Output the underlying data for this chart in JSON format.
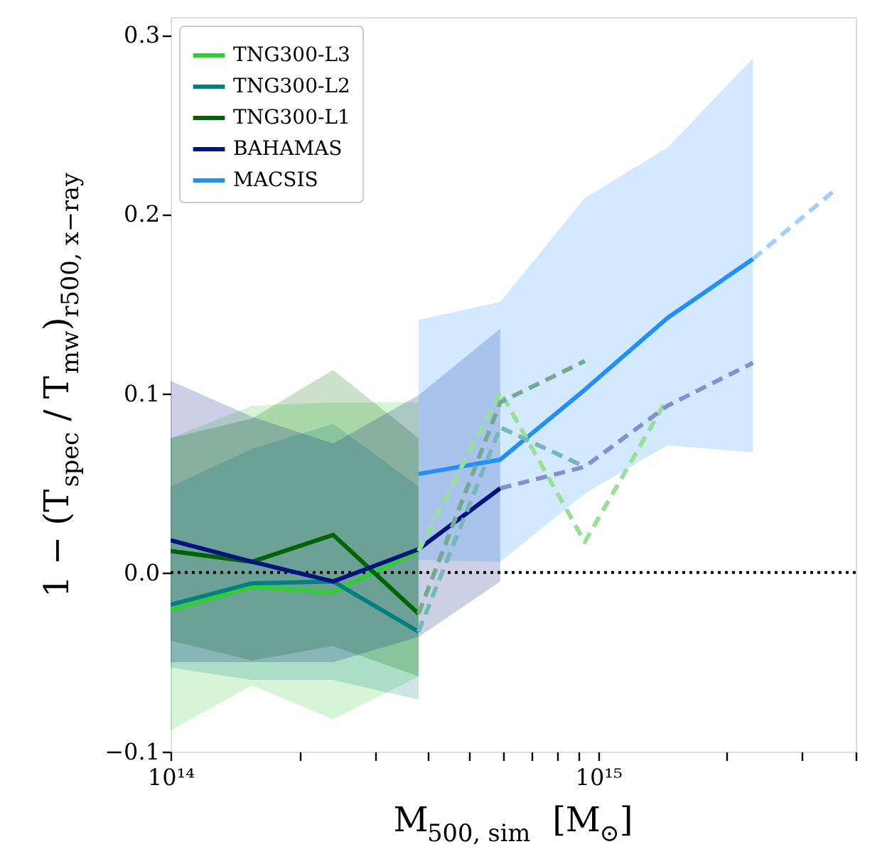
{
  "chart_data": {
    "type": "line",
    "xlabel": "M$_{500, sim}$  [M$_{⊙}$]",
    "ylabel": "1 − (T$_{spec}$ / T$_{mw}$)$_{r500, x−ray}$",
    "log": "x",
    "grid": false,
    "legend": "top left",
    "marker": "none",
    "xlim": [
      100000000000000.0,
      4000000000000000.0
    ],
    "ylim": [
      -0.1,
      0.31
    ],
    "xticks": [
      {
        "value": 100000000000000.0,
        "label": "10¹⁴"
      },
      {
        "value": 200000000000000.0,
        "label": null
      },
      {
        "value": 300000000000000.0,
        "label": null
      },
      {
        "value": 400000000000000.0,
        "label": null
      },
      {
        "value": 500000000000000.0,
        "label": null
      },
      {
        "value": 600000000000000.0,
        "label": null
      },
      {
        "value": 700000000000000.0,
        "label": null
      },
      {
        "value": 800000000000000.0,
        "label": null
      },
      {
        "value": 900000000000000.0,
        "label": null
      },
      {
        "value": 1000000000000000.0,
        "label": "10¹⁵"
      },
      {
        "value": 2000000000000000.0,
        "label": null
      },
      {
        "value": 3000000000000000.0,
        "label": null
      },
      {
        "value": 4000000000000000.0,
        "label": null
      }
    ],
    "yticks": [
      {
        "value": -0.1,
        "label": "−0.1"
      },
      {
        "value": 0,
        "label": "0.0"
      },
      0.1,
      0.2,
      0.3
    ],
    "ref_lines": [
      {
        "axis": "y",
        "value": 0,
        "color": "#000000",
        "line_style": "dotted"
      }
    ],
    "series": [
      {
        "name": "TNG300-L3",
        "color": "#32cd32",
        "line_style": "solid",
        "x": [
          100000000000000.0,
          155000000000000.0,
          240000000000000.0,
          380000000000000.0
        ],
        "values": [
          -0.021,
          -0.008,
          -0.011,
          0.012
        ],
        "lower": [
          -0.088,
          -0.063,
          -0.082,
          -0.058
        ],
        "upper": [
          0.075,
          0.093,
          0.095,
          0.095
        ]
      },
      {
        "name": "TNG300-L2",
        "color": "#008080",
        "line_style": "solid",
        "x": [
          100000000000000.0,
          155000000000000.0,
          240000000000000.0,
          380000000000000.0
        ],
        "values": [
          -0.018,
          -0.006,
          -0.005,
          -0.033
        ],
        "lower": [
          -0.053,
          -0.06,
          -0.06,
          -0.071
        ],
        "upper": [
          0.048,
          0.069,
          0.083,
          0.048
        ]
      },
      {
        "name": "TNG300-L1",
        "color": "#006400",
        "line_style": "solid",
        "x": [
          100000000000000.0,
          155000000000000.0,
          240000000000000.0,
          380000000000000.0
        ],
        "values": [
          0.012,
          0.006,
          0.021,
          -0.023
        ],
        "lower": [
          -0.038,
          -0.049,
          -0.041,
          -0.058
        ],
        "upper": [
          0.075,
          0.086,
          0.113,
          0.075
        ]
      },
      {
        "name": "BAHAMAS",
        "color": "#00137f",
        "line_style": "solid",
        "x": [
          100000000000000.0,
          155000000000000.0,
          240000000000000.0,
          380000000000000.0,
          590000000000000.0
        ],
        "values": [
          0.018,
          0.006,
          -0.005,
          0.013,
          0.047
        ],
        "lower": [
          -0.05,
          -0.05,
          -0.05,
          -0.036,
          -0.005
        ],
        "upper": [
          0.107,
          0.087,
          0.072,
          0.099,
          0.136
        ]
      },
      {
        "name": "MACSIS",
        "color": "#1e90ff",
        "line_style": "solid",
        "x": [
          380000000000000.0,
          590000000000000.0,
          930000000000000.0,
          1450000000000000.0,
          2300000000000000.0
        ],
        "values": [
          0.055,
          0.063,
          0.102,
          0.142,
          0.175
        ],
        "lower": [
          0.007,
          0.006,
          0.044,
          0.071,
          0.067
        ],
        "upper": [
          0.141,
          0.151,
          0.209,
          0.237,
          0.287
        ]
      },
      {
        "color": "#98e098",
        "line_style": "dashed",
        "x": [
          380000000000000.0,
          590000000000000.0,
          930000000000000.0,
          1450000000000000.0
        ],
        "values": [
          0.012,
          0.101,
          0.017,
          0.097
        ]
      },
      {
        "color": "#74b8b8",
        "line_style": "dashed",
        "x": [
          380000000000000.0,
          590000000000000.0,
          930000000000000.0
        ],
        "values": [
          -0.033,
          0.081,
          0.059
        ]
      },
      {
        "color": "#74ab90",
        "line_style": "dashed",
        "x": [
          380000000000000.0,
          590000000000000.0,
          930000000000000.0
        ],
        "values": [
          -0.023,
          0.095,
          0.118
        ]
      },
      {
        "color": "#8290d2",
        "line_style": "dashed",
        "x": [
          590000000000000.0,
          930000000000000.0,
          1450000000000000.0,
          2300000000000000.0
        ],
        "values": [
          0.047,
          0.059,
          0.093,
          0.117
        ]
      },
      {
        "color": "#a0d0ff",
        "line_style": "dashed",
        "x": [
          2300000000000000.0,
          3600000000000000.0
        ],
        "values": [
          0.175,
          0.214
        ]
      }
    ]
  }
}
